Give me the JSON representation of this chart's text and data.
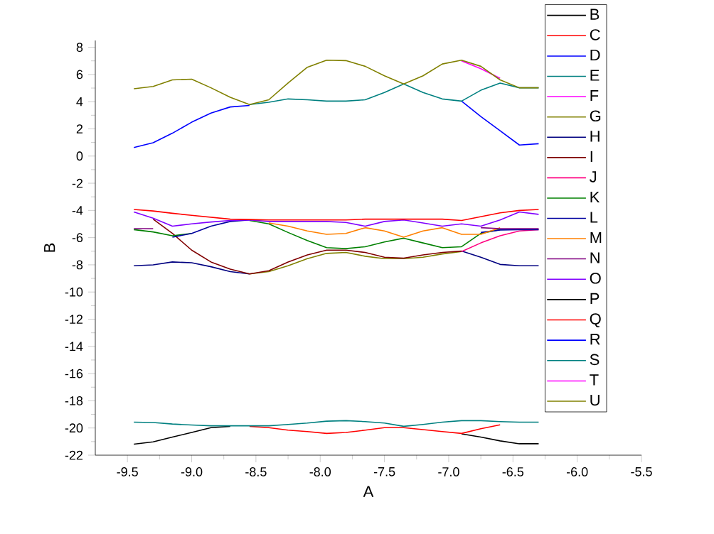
{
  "chart_data": {
    "type": "line",
    "xlabel": "A",
    "ylabel": "B",
    "x": [
      -9.45,
      -9.3,
      -9.15,
      -9.0,
      -8.85,
      -8.7,
      -8.55,
      -8.4,
      -8.25,
      -8.1,
      -7.95,
      -7.8,
      -7.65,
      -7.5,
      -7.35,
      -7.2,
      -7.05,
      -6.9,
      -6.75,
      -6.6,
      -6.45,
      -6.3
    ],
    "xlim": [
      -9.75,
      -5.5
    ],
    "ylim": [
      -22,
      8.5
    ],
    "xticks": [
      {
        "value": -9.5,
        "label": "-9.5"
      },
      {
        "value": -9,
        "label": "-9.0"
      },
      {
        "value": -8.5,
        "label": "-8.5"
      },
      {
        "value": -8,
        "label": "-8.0"
      },
      {
        "value": -7.5,
        "label": "-7.5"
      },
      {
        "value": -7,
        "label": "-7.0"
      },
      {
        "value": -6.5,
        "label": "-6.5"
      },
      {
        "value": -6,
        "label": "-6.0"
      },
      {
        "value": -5.5,
        "label": "-5.5"
      }
    ],
    "yticks": [
      -22,
      -20,
      -18,
      -16,
      -14,
      -12,
      -10,
      -8,
      -6,
      -4,
      -2,
      0,
      2,
      4,
      6,
      8
    ],
    "grid": false,
    "legend": "right",
    "marker": "none",
    "line_style": "solid",
    "series": [
      {
        "name": "B",
        "color": "#000000",
        "values": [
          -21.19,
          -21.02,
          -20.67,
          -20.33,
          -19.98,
          -19.88,
          null,
          null,
          null,
          null,
          null,
          null,
          null,
          null,
          null,
          null,
          null,
          -20.43,
          -20.67,
          -20.95,
          -21.16,
          -21.16
        ]
      },
      {
        "name": "C",
        "color": "#ff0000",
        "values": [
          null,
          null,
          null,
          null,
          null,
          null,
          -19.88,
          -19.98,
          -20.16,
          -20.26,
          -20.4,
          -20.33,
          -20.16,
          -19.98,
          -19.98,
          -20.12,
          -20.26,
          -20.4,
          -20.05,
          -19.77,
          null,
          null
        ]
      },
      {
        "name": "D",
        "color": "#0000ff",
        "values": [
          null,
          null,
          null,
          null,
          null,
          null,
          null,
          null,
          null,
          null,
          null,
          null,
          null,
          null,
          null,
          null,
          null,
          null,
          null,
          null,
          null,
          null
        ]
      },
      {
        "name": "E",
        "color": "#008080",
        "values": [
          -19.57,
          -19.6,
          -19.71,
          -19.78,
          -19.84,
          -19.84,
          -19.84,
          -19.84,
          -19.74,
          -19.64,
          -19.5,
          -19.46,
          -19.53,
          -19.64,
          -19.88,
          -19.74,
          -19.57,
          -19.46,
          -19.46,
          -19.53,
          -19.57,
          -19.57
        ]
      },
      {
        "name": "F",
        "color": "#ff00ff",
        "values": [
          null,
          null,
          null,
          null,
          null,
          null,
          null,
          null,
          null,
          null,
          null,
          null,
          null,
          null,
          null,
          null,
          null,
          null,
          null,
          null,
          null,
          null
        ]
      },
      {
        "name": "G",
        "color": "#808000",
        "values": [
          null,
          null,
          null,
          null,
          null,
          null,
          -8.67,
          -8.5,
          -8.07,
          -7.55,
          -7.16,
          -7.09,
          -7.37,
          -7.55,
          -7.55,
          -7.44,
          -7.2,
          -7.02,
          null,
          null,
          null,
          null
        ]
      },
      {
        "name": "H",
        "color": "#000080",
        "values": [
          -8.07,
          -8.0,
          -7.79,
          -7.85,
          -8.14,
          -8.5,
          -8.67,
          null,
          null,
          null,
          null,
          null,
          null,
          null,
          null,
          null,
          null,
          -6.99,
          -7.44,
          -7.97,
          -8.07,
          -8.07
        ]
      },
      {
        "name": "I",
        "color": "#800000",
        "values": [
          null,
          -4.64,
          -5.69,
          -6.92,
          -7.79,
          -8.32,
          -8.67,
          -8.43,
          -7.79,
          -7.27,
          -6.92,
          -6.92,
          -7.09,
          -7.44,
          -7.51,
          -7.27,
          -7.09,
          -6.99,
          null,
          null,
          null,
          null
        ]
      },
      {
        "name": "J",
        "color": "#ff0080",
        "values": [
          null,
          null,
          null,
          null,
          null,
          null,
          null,
          null,
          null,
          null,
          null,
          null,
          null,
          null,
          null,
          null,
          null,
          -7.02,
          -6.39,
          -5.86,
          -5.51,
          -5.41
        ]
      },
      {
        "name": "K",
        "color": "#008000",
        "values": [
          -5.41,
          -5.58,
          -5.86,
          -5.69,
          null,
          null,
          -4.74,
          -4.99,
          -5.62,
          -6.22,
          -6.74,
          -6.81,
          -6.67,
          -6.32,
          -6.04,
          -6.39,
          -6.74,
          -6.67,
          -5.69,
          -5.41,
          null,
          null
        ]
      },
      {
        "name": "L",
        "color": "#0000a0",
        "values": [
          null,
          null,
          -5.97,
          -5.69,
          -5.16,
          -4.81,
          -4.7,
          null,
          null,
          null,
          null,
          null,
          null,
          null,
          null,
          null,
          null,
          null,
          -5.62,
          -5.44,
          -5.41,
          -5.41
        ]
      },
      {
        "name": "M",
        "color": "#ff8000",
        "values": [
          null,
          null,
          null,
          null,
          null,
          null,
          null,
          -4.92,
          -5.16,
          -5.51,
          -5.76,
          -5.69,
          -5.27,
          -5.51,
          -5.97,
          -5.51,
          -5.27,
          -5.76,
          -5.76,
          -5.27,
          null,
          null
        ]
      },
      {
        "name": "N",
        "color": "#800080",
        "values": [
          -5.34,
          -5.34,
          null,
          null,
          null,
          null,
          null,
          null,
          null,
          null,
          null,
          null,
          null,
          null,
          null,
          null,
          null,
          null,
          -5.27,
          -5.34,
          -5.34,
          -5.34
        ]
      },
      {
        "name": "O",
        "color": "#8000ff",
        "values": [
          -4.11,
          -4.57,
          -5.16,
          -4.99,
          -4.85,
          -4.74,
          -4.7,
          -4.81,
          -4.81,
          -4.81,
          -4.81,
          -4.88,
          -5.16,
          -4.81,
          -4.7,
          -4.92,
          -5.16,
          -4.99,
          -5.16,
          -4.7,
          -4.11,
          -4.29
        ]
      },
      {
        "name": "P",
        "color": "#000000",
        "values": [
          null,
          null,
          null,
          null,
          null,
          null,
          null,
          null,
          null,
          null,
          null,
          null,
          null,
          null,
          null,
          null,
          null,
          null,
          null,
          null,
          null,
          null
        ]
      },
      {
        "name": "Q",
        "color": "#ff0000",
        "values": [
          -3.93,
          -4.04,
          -4.21,
          -4.36,
          -4.5,
          -4.64,
          -4.67,
          -4.7,
          -4.7,
          -4.7,
          -4.7,
          -4.7,
          -4.64,
          -4.64,
          -4.64,
          -4.64,
          -4.64,
          -4.74,
          -4.46,
          -4.18,
          -4.0,
          -3.93
        ]
      },
      {
        "name": "R",
        "color": "#0000ff",
        "values": [
          0.63,
          0.98,
          1.68,
          2.49,
          3.16,
          3.61,
          3.72,
          null,
          null,
          null,
          null,
          null,
          null,
          null,
          null,
          null,
          null,
          4.04,
          2.91,
          1.86,
          0.81,
          0.91
        ]
      },
      {
        "name": "S",
        "color": "#008080",
        "values": [
          null,
          null,
          null,
          null,
          null,
          null,
          3.79,
          3.96,
          4.2,
          4.14,
          4.04,
          4.04,
          4.14,
          4.67,
          5.3,
          4.67,
          4.2,
          4.04,
          4.84,
          5.37,
          5.02,
          5.02
        ]
      },
      {
        "name": "T",
        "color": "#ff00ff",
        "values": [
          null,
          null,
          null,
          null,
          null,
          null,
          null,
          null,
          null,
          null,
          null,
          null,
          null,
          null,
          null,
          null,
          null,
          7.0,
          6.42,
          5.72,
          null,
          null
        ]
      },
      {
        "name": "U",
        "color": "#808000",
        "values": [
          4.95,
          5.12,
          5.6,
          5.65,
          5.02,
          4.32,
          3.79,
          4.14,
          5.37,
          6.53,
          7.05,
          7.02,
          6.6,
          5.9,
          5.3,
          5.9,
          6.77,
          7.05,
          6.6,
          5.6,
          5.02,
          5.02
        ]
      }
    ]
  }
}
